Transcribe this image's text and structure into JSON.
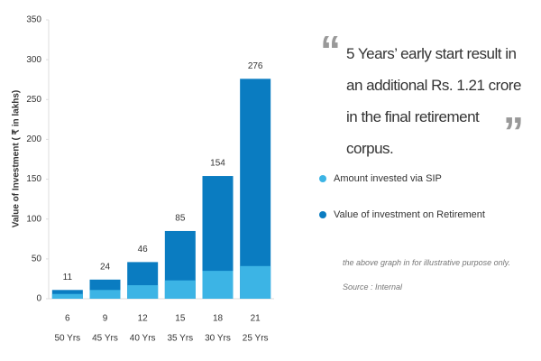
{
  "chart_data": {
    "type": "bar",
    "y_label": "Value of Investment ( ₹ in lakhs)",
    "categories": [
      "6",
      "9",
      "12",
      "15",
      "18",
      "21"
    ],
    "sublabels": [
      "50 Yrs",
      "45 Yrs",
      "40 Yrs",
      "35 Yrs",
      "30 Yrs",
      "25 Yrs"
    ],
    "series": [
      {
        "name": "Amount invested via SIP",
        "color": "#3cb4e5",
        "values": [
          6,
          11,
          17,
          23,
          35,
          41
        ]
      },
      {
        "name": "Value of investment on Retirement",
        "color": "#0a7cc1",
        "values": [
          11,
          24,
          46,
          85,
          154,
          276
        ]
      }
    ],
    "ylim": [
      0,
      350
    ],
    "yticks": [
      0,
      50,
      100,
      150,
      200,
      250,
      300,
      350
    ],
    "quote": "5 Years’ early start result in an additional Rs. 1.21 crore in the final retirement corpus.",
    "note": "the above graph in for illustrative purpose only.",
    "source": "Source : Internal"
  }
}
